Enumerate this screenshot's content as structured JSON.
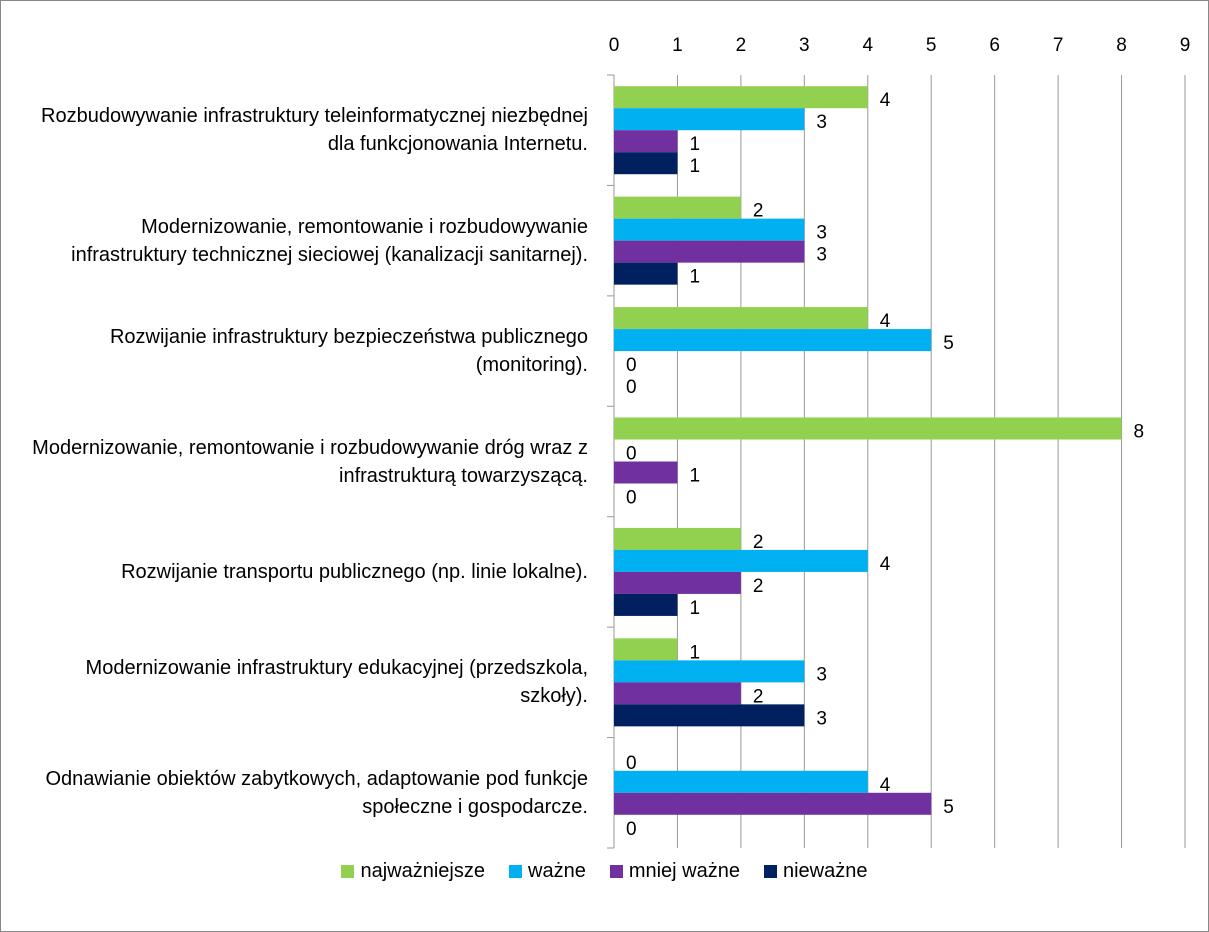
{
  "chart_data": {
    "type": "hbar",
    "categories": [
      "Rozbudowywanie infrastruktury teleinformatycznej niezbędnej dla funkcjonowania Internetu.",
      "Modernizowanie, remontowanie i rozbudowywanie infrastruktury technicznej sieciowej (kanalizacji sanitarnej).",
      "Rozwijanie infrastruktury bezpieczeństwa publicznego (monitoring).",
      "Modernizowanie, remontowanie i rozbudowywanie dróg wraz z infrastrukturą towarzyszącą.",
      "Rozwijanie transportu publicznego (np. linie lokalne).",
      "Modernizowanie infrastruktury edukacyjnej (przedszkola, szkoły).",
      "Odnawianie obiektów zabytkowych, adaptowanie pod funkcje społeczne i gospodarcze."
    ],
    "series": [
      {
        "name": "najważniejsze",
        "color": "#92d050",
        "values": [
          4,
          2,
          4,
          8,
          2,
          1,
          0
        ]
      },
      {
        "name": "ważne",
        "color": "#00b0f0",
        "values": [
          3,
          3,
          5,
          0,
          4,
          3,
          4
        ]
      },
      {
        "name": "mniej ważne",
        "color": "#7030a0",
        "values": [
          1,
          3,
          0,
          1,
          2,
          2,
          5
        ]
      },
      {
        "name": "nieważne",
        "color": "#002060",
        "values": [
          1,
          1,
          0,
          0,
          1,
          3,
          0
        ]
      }
    ],
    "xlim": [
      0,
      9
    ],
    "xticks": [
      0,
      1,
      2,
      3,
      4,
      5,
      6,
      7,
      8,
      9
    ],
    "grid": true,
    "legend": "bottom"
  }
}
